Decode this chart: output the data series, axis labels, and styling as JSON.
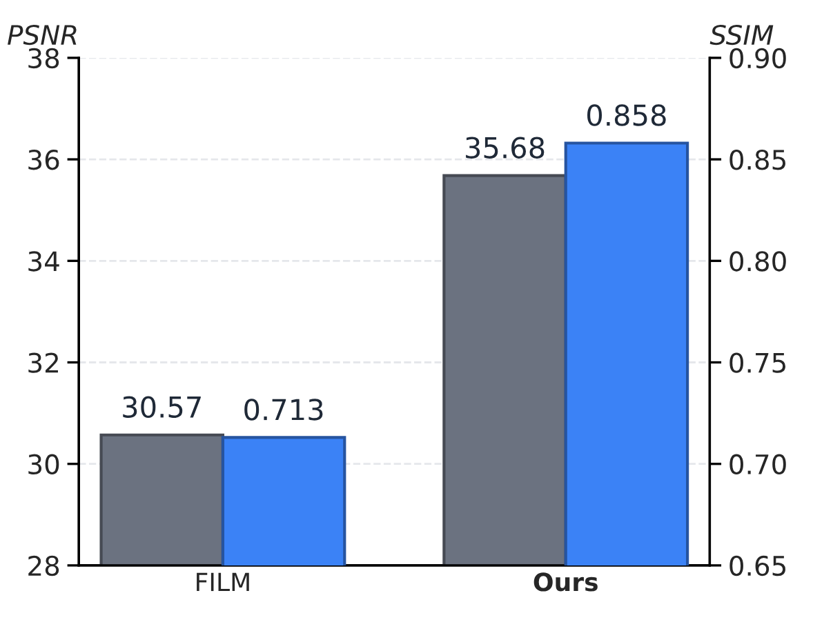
{
  "chart_data": {
    "type": "bar",
    "categories": [
      "FILM",
      "Ours"
    ],
    "ylabel": "PSNR",
    "y2label": "SSIM",
    "series": [
      {
        "color": "#6b7280",
        "values": [
          30.57,
          35.68
        ]
      },
      {
        "color": "#3b82f6",
        "values": [
          0.713,
          0.858
        ],
        "axis": "y2"
      }
    ],
    "ylim": [
      28,
      38
    ],
    "yticks": [
      28,
      30,
      32,
      34,
      36,
      38
    ],
    "y2lim": [
      0.65,
      0.9
    ],
    "y2ticks": [
      {
        "value": 0.65,
        "label": "0.65"
      },
      {
        "value": 0.7,
        "label": "0.70"
      },
      {
        "value": 0.75,
        "label": "0.75"
      },
      {
        "value": 0.8,
        "label": "0.80"
      },
      {
        "value": 0.85,
        "label": "0.85"
      },
      {
        "value": 0.9,
        "label": "0.90"
      }
    ],
    "data_labels": true,
    "grid": "y",
    "legend": false
  }
}
